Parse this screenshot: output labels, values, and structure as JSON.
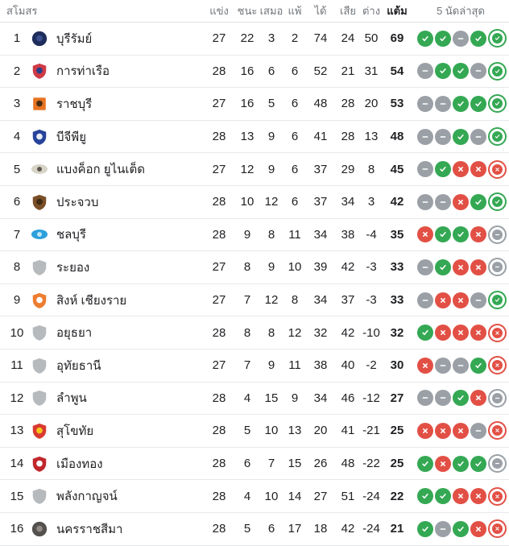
{
  "colors": {
    "win": "#34a853",
    "draw": "#9aa0a6",
    "loss": "#e25045",
    "ring_gap": "#ffffff"
  },
  "table": {
    "headers": {
      "club": "สโมสร",
      "played": "แข่ง",
      "won": "ชนะ",
      "drawn": "เสมอ",
      "lost": "แพ้",
      "gf": "ได้",
      "ga": "เสีย",
      "gd": "ต่าง",
      "points": "แต้ม",
      "form": "5 นัดล่าสุด"
    },
    "rows": [
      {
        "pos": 1,
        "name": "บุรีรัมย์",
        "crest": {
          "shape": "circle",
          "color": "#1e2d5c",
          "accent": "#3c4f8f"
        },
        "played": 27,
        "won": 22,
        "drawn": 3,
        "lost": 2,
        "gf": 74,
        "ga": 24,
        "gd": "50",
        "points": 69,
        "form": [
          "W",
          "W",
          "D",
          "W",
          "W"
        ]
      },
      {
        "pos": 2,
        "name": "การท่าเรือ",
        "crest": {
          "shape": "shield",
          "color": "#cf3a45",
          "accent": "#27408b"
        },
        "played": 28,
        "won": 16,
        "drawn": 6,
        "lost": 6,
        "gf": 52,
        "ga": 21,
        "gd": "31",
        "points": 54,
        "form": [
          "D",
          "W",
          "W",
          "D",
          "W"
        ]
      },
      {
        "pos": 3,
        "name": "ราชบุรี",
        "crest": {
          "shape": "square",
          "color": "#e87422",
          "accent": "#4a2c12"
        },
        "played": 27,
        "won": 16,
        "drawn": 5,
        "lost": 6,
        "gf": 48,
        "ga": 28,
        "gd": "20",
        "points": 53,
        "form": [
          "D",
          "D",
          "W",
          "W",
          "W"
        ]
      },
      {
        "pos": 4,
        "name": "บีจีพียู",
        "crest": {
          "shape": "shield",
          "color": "#27439b",
          "accent": "#e8edf5"
        },
        "played": 28,
        "won": 13,
        "drawn": 9,
        "lost": 6,
        "gf": 41,
        "ga": 28,
        "gd": "13",
        "points": 48,
        "form": [
          "D",
          "D",
          "W",
          "D",
          "W"
        ]
      },
      {
        "pos": 5,
        "name": "แบงค็อก ยูไนเต็ด",
        "crest": {
          "shape": "wide",
          "color": "#d9d4c8",
          "accent": "#5a544c"
        },
        "played": 27,
        "won": 12,
        "drawn": 9,
        "lost": 6,
        "gf": 37,
        "ga": 29,
        "gd": "8",
        "points": 45,
        "form": [
          "D",
          "W",
          "L",
          "L",
          "L"
        ]
      },
      {
        "pos": 6,
        "name": "ประจวบ",
        "crest": {
          "shape": "shield",
          "color": "#7a4f28",
          "accent": "#3f2a14"
        },
        "played": 28,
        "won": 10,
        "drawn": 12,
        "lost": 6,
        "gf": 37,
        "ga": 34,
        "gd": "3",
        "points": 42,
        "form": [
          "D",
          "D",
          "L",
          "W",
          "W"
        ]
      },
      {
        "pos": 7,
        "name": "ชลบุรี",
        "crest": {
          "shape": "wide",
          "color": "#2da0dc",
          "accent": "#bfe6f7"
        },
        "played": 28,
        "won": 9,
        "drawn": 8,
        "lost": 11,
        "gf": 34,
        "ga": 38,
        "gd": "-4",
        "points": 35,
        "form": [
          "L",
          "W",
          "W",
          "L",
          "D"
        ]
      },
      {
        "pos": 8,
        "name": "ระยอง",
        "crest": {
          "shape": "shield",
          "color": "#b7babd"
        },
        "played": 27,
        "won": 8,
        "drawn": 9,
        "lost": 10,
        "gf": 39,
        "ga": 42,
        "gd": "-3",
        "points": 33,
        "form": [
          "D",
          "W",
          "L",
          "L",
          "D"
        ]
      },
      {
        "pos": 9,
        "name": "สิงห์ เชียงราย",
        "crest": {
          "shape": "shield",
          "color": "#ed7d31",
          "accent": "#ffffff"
        },
        "played": 27,
        "won": 7,
        "drawn": 12,
        "lost": 8,
        "gf": 34,
        "ga": 37,
        "gd": "-3",
        "points": 33,
        "form": [
          "D",
          "L",
          "L",
          "D",
          "W"
        ]
      },
      {
        "pos": 10,
        "name": "อยุธยา",
        "crest": {
          "shape": "shield",
          "color": "#b7babd"
        },
        "played": 28,
        "won": 8,
        "drawn": 8,
        "lost": 12,
        "gf": 32,
        "ga": 42,
        "gd": "-10",
        "points": 32,
        "form": [
          "W",
          "L",
          "L",
          "L",
          "L"
        ]
      },
      {
        "pos": 11,
        "name": "อุทัยธานี",
        "crest": {
          "shape": "shield",
          "color": "#b7babd"
        },
        "played": 27,
        "won": 7,
        "drawn": 9,
        "lost": 11,
        "gf": 38,
        "ga": 40,
        "gd": "-2",
        "points": 30,
        "form": [
          "L",
          "D",
          "D",
          "W",
          "L"
        ]
      },
      {
        "pos": 12,
        "name": "ลำพูน",
        "crest": {
          "shape": "shield",
          "color": "#b7babd"
        },
        "played": 28,
        "won": 4,
        "drawn": 15,
        "lost": 9,
        "gf": 34,
        "ga": 46,
        "gd": "-12",
        "points": 27,
        "form": [
          "D",
          "D",
          "W",
          "L",
          "D"
        ]
      },
      {
        "pos": 13,
        "name": "สุโขทัย",
        "crest": {
          "shape": "shield",
          "color": "#d93a31",
          "accent": "#f5c51d"
        },
        "played": 28,
        "won": 5,
        "drawn": 10,
        "lost": 13,
        "gf": 20,
        "ga": 41,
        "gd": "-21",
        "points": 25,
        "form": [
          "L",
          "L",
          "L",
          "D",
          "L"
        ]
      },
      {
        "pos": 14,
        "name": "เมืองทอง",
        "crest": {
          "shape": "shield",
          "color": "#c0272d",
          "accent": "#ffffff"
        },
        "played": 28,
        "won": 6,
        "drawn": 7,
        "lost": 15,
        "gf": 26,
        "ga": 48,
        "gd": "-22",
        "points": 25,
        "form": [
          "W",
          "L",
          "W",
          "W",
          "D"
        ]
      },
      {
        "pos": 15,
        "name": "พลังกาญจน์",
        "crest": {
          "shape": "shield",
          "color": "#b7babd"
        },
        "played": 28,
        "won": 4,
        "drawn": 10,
        "lost": 14,
        "gf": 27,
        "ga": 51,
        "gd": "-24",
        "points": 22,
        "form": [
          "W",
          "W",
          "L",
          "L",
          "L"
        ]
      },
      {
        "pos": 16,
        "name": "นครราชสีมา",
        "crest": {
          "shape": "circle",
          "color": "#54504e",
          "accent": "#8f8a86"
        },
        "played": 28,
        "won": 5,
        "drawn": 6,
        "lost": 17,
        "gf": 18,
        "ga": 42,
        "gd": "-24",
        "points": 21,
        "form": [
          "W",
          "D",
          "W",
          "L",
          "L"
        ]
      }
    ]
  }
}
